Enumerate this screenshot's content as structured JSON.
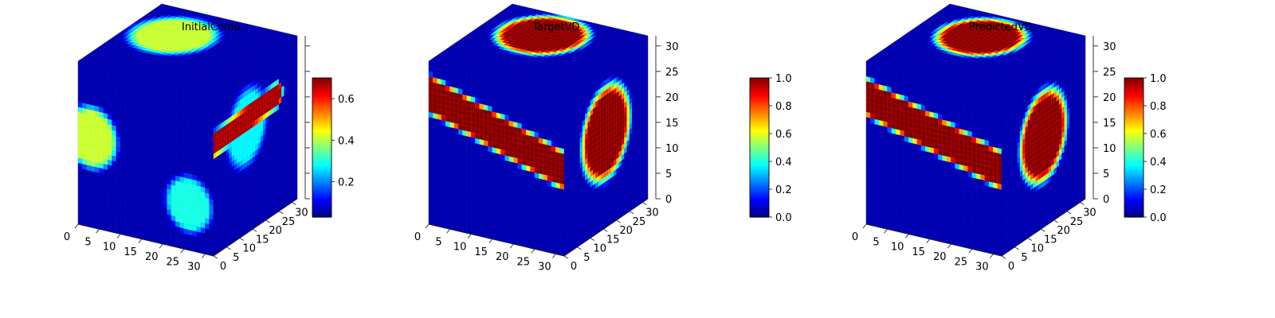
{
  "chart_data": [
    {
      "type": "heatmap",
      "subtype": "3d-voxel-cube",
      "title": "InitialComp",
      "colormap": "jet",
      "grid_resolution": 32,
      "x_ticks": [
        0,
        5,
        10,
        15,
        20,
        25,
        30
      ],
      "y_ticks": [
        0,
        5,
        10,
        15,
        20,
        25,
        30
      ],
      "z_ticks": [],
      "colorbar": {
        "range": [
          0.03,
          0.7
        ],
        "ticks": [
          "0.2",
          "0.4",
          "0.6"
        ]
      },
      "features": [
        {
          "face": "top",
          "kind": "blob",
          "center": [
            0.32,
            0.38
          ],
          "radius": 0.33,
          "value": 0.42
        },
        {
          "face": "front",
          "kind": "blob",
          "center": [
            0.1,
            0.45
          ],
          "radius": 0.22,
          "value": 0.42
        },
        {
          "face": "front",
          "kind": "blob",
          "center": [
            0.82,
            0.72
          ],
          "radius": 0.2,
          "value": 0.3
        },
        {
          "face": "side",
          "kind": "band",
          "from": [
            0.0,
            0.32
          ],
          "to": [
            0.75,
            0.28
          ],
          "width": 0.09,
          "value": 0.68
        },
        {
          "face": "side",
          "kind": "blob",
          "center": [
            0.4,
            0.35
          ],
          "radius": 0.28,
          "value": 0.28
        }
      ]
    },
    {
      "type": "heatmap",
      "subtype": "3d-voxel-cube",
      "title": "TargetVD",
      "colormap": "jet",
      "grid_resolution": 32,
      "x_ticks": [
        0,
        5,
        10,
        15,
        20,
        25,
        30
      ],
      "y_ticks": [
        0,
        5,
        10,
        15,
        20,
        25,
        30
      ],
      "z_ticks": [
        0,
        5,
        10,
        15,
        20,
        25,
        30
      ],
      "colorbar": {
        "range": [
          0,
          1
        ],
        "ticks": [
          "0.0",
          "0.2",
          "0.4",
          "0.6",
          "0.8",
          "1.0"
        ]
      },
      "features": [
        {
          "face": "top",
          "kind": "blob",
          "center": [
            0.42,
            0.32
          ],
          "radius": 0.34,
          "value": 1.0
        },
        {
          "face": "front",
          "kind": "band",
          "from": [
            0.0,
            0.2
          ],
          "to": [
            1.0,
            0.48
          ],
          "width": 0.13,
          "value": 1.0
        },
        {
          "face": "side",
          "kind": "blob",
          "center": [
            0.5,
            0.42
          ],
          "radius": 0.33,
          "value": 1.0
        }
      ]
    },
    {
      "type": "heatmap",
      "subtype": "3d-voxel-cube",
      "title": "PredictedVD",
      "colormap": "jet",
      "grid_resolution": 32,
      "x_ticks": [
        0,
        5,
        10,
        15,
        20,
        25,
        30
      ],
      "y_ticks": [
        0,
        5,
        10,
        15,
        20,
        25,
        30
      ],
      "z_ticks": [
        0,
        5,
        10,
        15,
        20,
        25,
        30
      ],
      "colorbar": {
        "range": [
          0,
          1
        ],
        "ticks": [
          "0.0",
          "0.2",
          "0.4",
          "0.6",
          "0.8",
          "1.0"
        ]
      },
      "features": [
        {
          "face": "top",
          "kind": "blob",
          "center": [
            0.44,
            0.34
          ],
          "radius": 0.33,
          "value": 1.0
        },
        {
          "face": "front",
          "kind": "band",
          "from": [
            0.0,
            0.22
          ],
          "to": [
            1.0,
            0.48
          ],
          "width": 0.13,
          "value": 1.0
        },
        {
          "face": "side",
          "kind": "blob",
          "center": [
            0.5,
            0.44
          ],
          "radius": 0.32,
          "value": 1.0
        }
      ]
    }
  ]
}
